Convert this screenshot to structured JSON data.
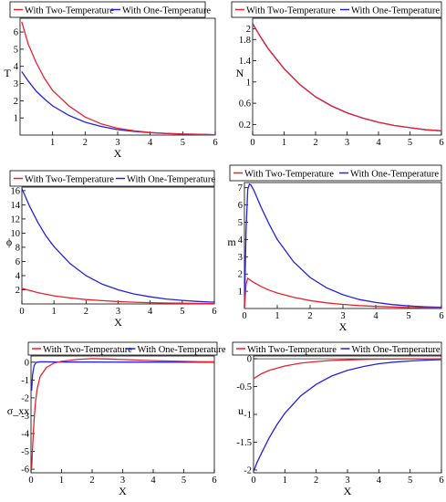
{
  "colors": {
    "red": "#e8222d",
    "blue": "#2222e0",
    "axis": "#000000"
  },
  "chart_data": [
    {
      "type": "line",
      "ylabel": "T",
      "xlabel": "X",
      "xlim": [
        0,
        6
      ],
      "ylim": [
        0,
        6.8
      ],
      "xticks": [
        1,
        2,
        3,
        4,
        5,
        6
      ],
      "yticks": [
        1,
        2,
        3,
        4,
        5,
        6
      ],
      "series": [
        {
          "name": "With Two-Temperature",
          "color": "red",
          "x": [
            0.05,
            0.25,
            0.5,
            0.75,
            1,
            1.5,
            2,
            2.5,
            3,
            3.5,
            4,
            4.5,
            5,
            5.5,
            6
          ],
          "y": [
            6.6,
            5.3,
            4.2,
            3.3,
            2.6,
            1.7,
            1.05,
            0.65,
            0.4,
            0.25,
            0.15,
            0.1,
            0.06,
            0.04,
            0.02
          ]
        },
        {
          "name": "With One-Temperature",
          "color": "blue",
          "x": [
            0.05,
            0.25,
            0.5,
            0.75,
            1,
            1.5,
            2,
            2.5,
            3,
            3.5,
            4,
            4.5,
            5,
            5.5,
            6
          ],
          "y": [
            3.7,
            3.15,
            2.55,
            2.1,
            1.7,
            1.15,
            0.75,
            0.5,
            0.32,
            0.21,
            0.14,
            0.09,
            0.06,
            0.04,
            0.02
          ]
        }
      ]
    },
    {
      "type": "line",
      "ylabel": "N",
      "xlabel": "",
      "xlim": [
        0,
        6
      ],
      "ylim": [
        0,
        2.2
      ],
      "xticks": [
        0,
        1,
        2,
        3,
        4,
        5,
        6
      ],
      "yticks": [
        0.2,
        0.6,
        1,
        1.4,
        1.8,
        2
      ],
      "ytick_labels": [
        "0.2",
        "0.6",
        "1",
        "1.4",
        "1.8",
        "2"
      ],
      "series": [
        {
          "name": "With Two-Temperature",
          "color": "red",
          "x": [
            0,
            0.25,
            0.5,
            1,
            1.5,
            2,
            2.5,
            3,
            3.5,
            4,
            4.5,
            5,
            5.5,
            6
          ],
          "y": [
            2.1,
            1.85,
            1.62,
            1.25,
            0.95,
            0.72,
            0.55,
            0.42,
            0.32,
            0.24,
            0.18,
            0.14,
            0.1,
            0.08
          ]
        },
        {
          "name": "With One-Temperature",
          "color": "blue",
          "x": [
            0,
            0.25,
            0.5,
            1,
            1.5,
            2,
            2.5,
            3,
            3.5,
            4,
            4.5,
            5,
            5.5,
            6
          ],
          "y": [
            2.1,
            1.85,
            1.62,
            1.25,
            0.95,
            0.72,
            0.55,
            0.42,
            0.32,
            0.24,
            0.18,
            0.14,
            0.1,
            0.08
          ]
        }
      ]
    },
    {
      "type": "line",
      "ylabel": "ϕ",
      "xlabel": "X",
      "xlim": [
        0,
        6
      ],
      "ylim": [
        0,
        16.5
      ],
      "xticks": [
        0,
        1,
        2,
        3,
        4,
        5,
        6
      ],
      "yticks": [
        2,
        4,
        6,
        8,
        10,
        12,
        14,
        16
      ],
      "series": [
        {
          "name": "With Two-Temperature",
          "color": "red",
          "x": [
            0,
            0.5,
            1,
            1.5,
            2,
            2.5,
            3,
            3.5,
            4,
            4.5,
            5,
            5.5,
            6
          ],
          "y": [
            2.2,
            1.6,
            1.15,
            0.85,
            0.62,
            0.46,
            0.34,
            0.25,
            0.18,
            0.13,
            0.1,
            0.07,
            0.05
          ]
        },
        {
          "name": "With One-Temperature",
          "color": "blue",
          "x": [
            0,
            0.25,
            0.5,
            0.75,
            1,
            1.5,
            2,
            2.5,
            3,
            3.5,
            4,
            4.5,
            5,
            5.5,
            6
          ],
          "y": [
            16.3,
            13.7,
            11.5,
            9.6,
            8.1,
            5.7,
            4.0,
            2.8,
            2.0,
            1.4,
            1.0,
            0.7,
            0.5,
            0.35,
            0.25
          ]
        }
      ]
    },
    {
      "type": "line",
      "ylabel": "m",
      "xlabel": "X",
      "xlim": [
        0,
        6
      ],
      "ylim": [
        0,
        7.3
      ],
      "xticks": [
        0,
        1,
        2,
        3,
        4,
        5,
        6
      ],
      "yticks": [
        1,
        2,
        3,
        4,
        5,
        6,
        7
      ],
      "series": [
        {
          "name": "With Two-Temperature",
          "color": "red",
          "x": [
            0,
            0.05,
            0.1,
            0.15,
            0.25,
            0.5,
            0.75,
            1,
            1.5,
            2,
            2.5,
            3,
            3.5,
            4,
            4.5,
            5,
            5.5,
            6
          ],
          "y": [
            0,
            1.4,
            1.75,
            1.68,
            1.55,
            1.28,
            1.07,
            0.9,
            0.65,
            0.46,
            0.33,
            0.24,
            0.17,
            0.12,
            0.09,
            0.06,
            0.045,
            0.03
          ]
        },
        {
          "name": "With One-Temperature",
          "color": "blue",
          "x": [
            0,
            0.05,
            0.1,
            0.15,
            0.2,
            0.3,
            0.5,
            0.75,
            1,
            1.5,
            2,
            2.5,
            3,
            3.5,
            4,
            4.5,
            5,
            5.5,
            6
          ],
          "y": [
            0,
            4.5,
            6.9,
            7.2,
            7.15,
            6.8,
            5.9,
            4.9,
            4.0,
            2.7,
            1.8,
            1.2,
            0.8,
            0.52,
            0.35,
            0.23,
            0.15,
            0.1,
            0.07
          ]
        }
      ]
    },
    {
      "type": "line",
      "ylabel": "σ_xx",
      "xlabel": "X",
      "xlim": [
        0,
        6
      ],
      "ylim": [
        -6.2,
        0.35
      ],
      "xticks": [
        0,
        1,
        2,
        3,
        4,
        5,
        6
      ],
      "yticks": [
        0,
        -1,
        -2,
        -3,
        -4,
        -5,
        -6
      ],
      "series": [
        {
          "name": "With Two-Temperature",
          "color": "red",
          "x": [
            0.02,
            0.05,
            0.1,
            0.15,
            0.2,
            0.3,
            0.5,
            0.75,
            1,
            1.5,
            2,
            2.5,
            3,
            3.5,
            4,
            4.5,
            5,
            5.5,
            6
          ],
          "y": [
            -6.0,
            -4.8,
            -3.2,
            -2.2,
            -1.5,
            -0.8,
            -0.3,
            -0.05,
            0.05,
            0.15,
            0.2,
            0.18,
            0.15,
            0.12,
            0.09,
            0.07,
            0.05,
            0.03,
            0.02
          ]
        },
        {
          "name": "With One-Temperature",
          "color": "blue",
          "x": [
            0.02,
            0.05,
            0.1,
            0.15,
            0.2,
            0.3,
            0.5,
            1,
            2,
            3,
            4,
            5,
            6
          ],
          "y": [
            -1.6,
            -0.7,
            -0.2,
            -0.05,
            0,
            0.02,
            0.02,
            0.01,
            0.01,
            0,
            0,
            0,
            0
          ]
        }
      ]
    },
    {
      "type": "line",
      "ylabel": "u",
      "xlabel": "X",
      "xlim": [
        0,
        6
      ],
      "ylim": [
        -2.05,
        0.05
      ],
      "xticks": [
        0,
        1,
        2,
        3,
        4,
        5,
        6
      ],
      "yticks": [
        0,
        -0.5,
        -1,
        -1.5,
        -2
      ],
      "series": [
        {
          "name": "With Two-Temperature",
          "color": "red",
          "x": [
            0.02,
            0.25,
            0.5,
            1,
            1.5,
            2,
            2.5,
            3,
            3.5,
            4,
            4.5,
            5,
            5.5,
            6
          ],
          "y": [
            -0.35,
            -0.27,
            -0.21,
            -0.13,
            -0.08,
            -0.05,
            -0.03,
            -0.02,
            -0.012,
            -0.008,
            -0.005,
            -0.003,
            -0.002,
            -0.001
          ]
        },
        {
          "name": "With One-Temperature",
          "color": "blue",
          "x": [
            0.02,
            0.1,
            0.25,
            0.5,
            0.75,
            1,
            1.5,
            2,
            2.5,
            3,
            3.5,
            4,
            4.5,
            5,
            5.5,
            6
          ],
          "y": [
            -2.0,
            -1.88,
            -1.7,
            -1.42,
            -1.18,
            -0.98,
            -0.67,
            -0.46,
            -0.31,
            -0.21,
            -0.14,
            -0.09,
            -0.06,
            -0.04,
            -0.025,
            -0.015
          ]
        }
      ]
    }
  ]
}
